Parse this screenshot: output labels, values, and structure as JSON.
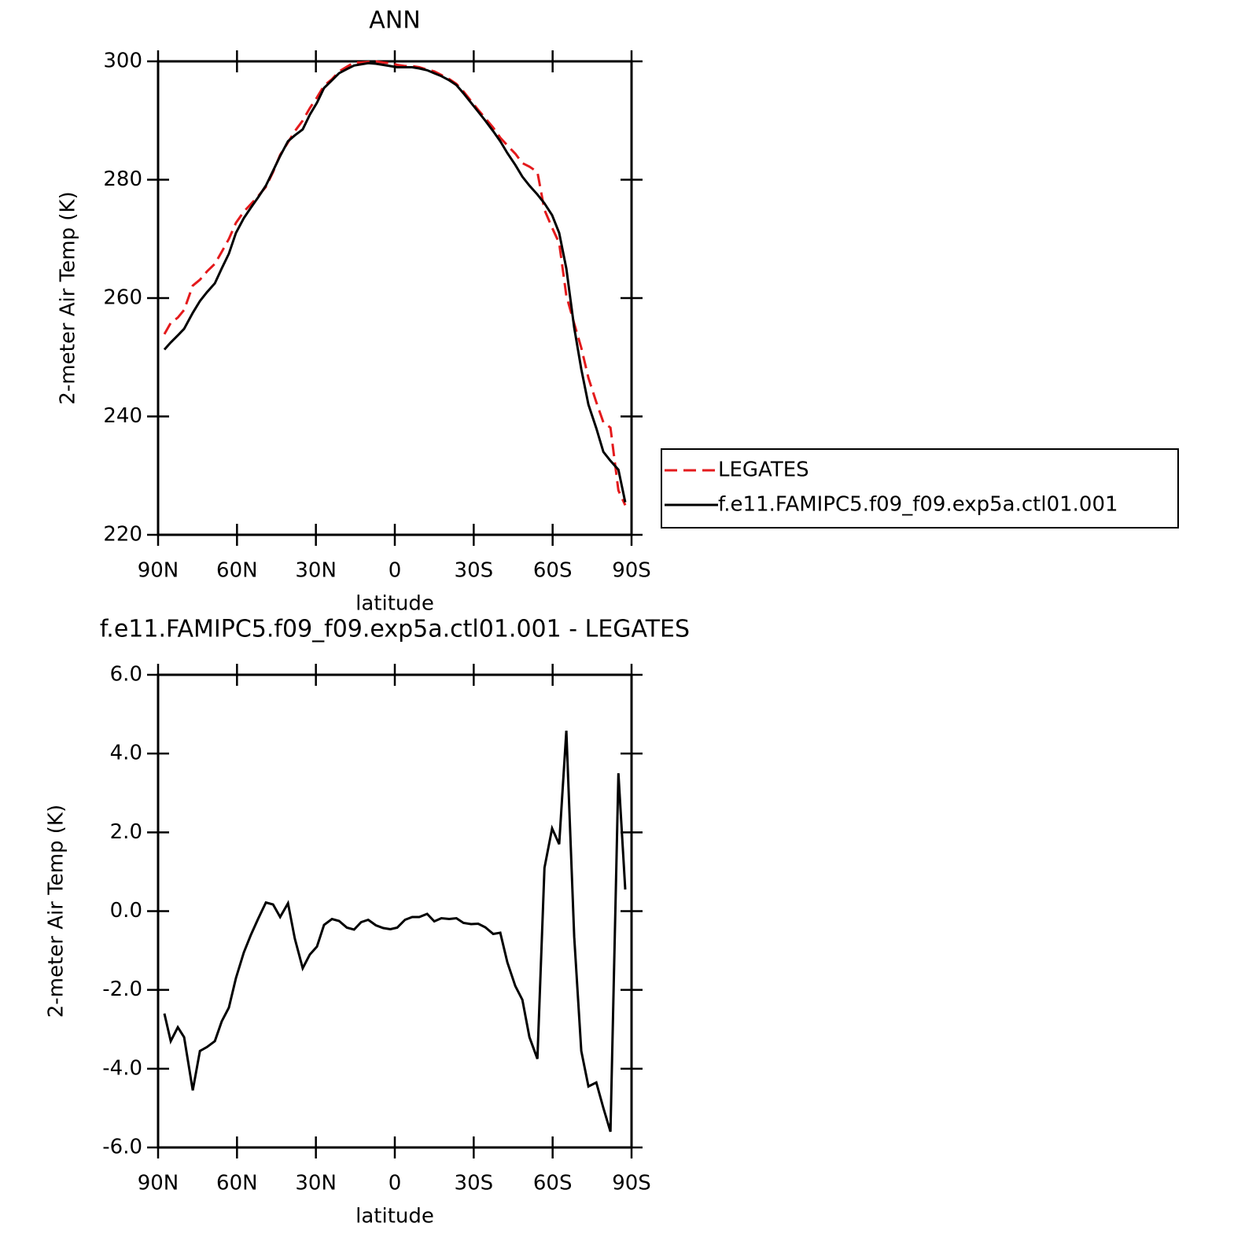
{
  "chart_data": [
    {
      "type": "line",
      "title": "ANN",
      "xlabel": "latitude",
      "ylabel": "2-meter Air Temp (K)",
      "xlim": [
        90,
        -90
      ],
      "xticks": [
        {
          "value": 90,
          "label": "90N"
        },
        {
          "value": 60,
          "label": "60N"
        },
        {
          "value": 30,
          "label": "30N"
        },
        0,
        {
          "value": -30,
          "label": "30S"
        },
        {
          "value": -60,
          "label": "60S"
        },
        {
          "value": -90,
          "label": "90S"
        }
      ],
      "ylim": [
        220,
        300
      ],
      "yticks": [
        220,
        240,
        260,
        280,
        300
      ],
      "legend_position": "right",
      "x": [
        87.6,
        85.2,
        82.5,
        80.1,
        76.8,
        74.1,
        71.4,
        68.4,
        65.8,
        63.1,
        60.4,
        57.4,
        54.7,
        52.0,
        49.0,
        46.3,
        43.6,
        40.6,
        38.0,
        35.0,
        32.3,
        29.6,
        26.9,
        23.9,
        21.2,
        18.2,
        15.5,
        12.8,
        10.1,
        7.2,
        4.4,
        1.7,
        -0.9,
        -3.9,
        -6.6,
        -9.3,
        -12.3,
        -15.0,
        -17.7,
        -20.7,
        -23.4,
        -26.1,
        -29.0,
        -31.7,
        -34.4,
        -37.4,
        -40.1,
        -42.8,
        -45.8,
        -48.5,
        -51.2,
        -54.2,
        -56.9,
        -59.8,
        -62.5,
        -65.2,
        -68.2,
        -70.9,
        -73.6,
        -76.6,
        -79.3,
        -82.0,
        -85.0,
        -87.6
      ],
      "series": [
        {
          "name": "LEGATES",
          "color": "#e41a1c",
          "line_style": "dashed",
          "values": [
            253.9,
            255.8,
            256.7,
            258.0,
            262.1,
            263.1,
            264.5,
            265.8,
            267.8,
            270.0,
            272.7,
            274.6,
            275.9,
            277.2,
            278.8,
            281.3,
            284.2,
            286.3,
            288.2,
            290.0,
            292.1,
            293.9,
            295.9,
            297.0,
            298.3,
            299.1,
            299.8,
            299.8,
            299.9,
            300.0,
            299.8,
            299.7,
            299.4,
            299.2,
            299.2,
            299.0,
            298.6,
            298.3,
            297.7,
            297.0,
            296.2,
            294.9,
            293.3,
            291.8,
            290.4,
            288.8,
            287.1,
            285.8,
            284.4,
            282.8,
            282.2,
            281.3,
            274.9,
            271.9,
            269.3,
            260.4,
            255.7,
            251.6,
            246.5,
            242.4,
            239.0,
            238.1,
            227.5,
            225.0
          ]
        },
        {
          "name": "f.e11.FAMIPC5.f09_f09.exp5a.ctl01.001",
          "color": "#000000",
          "line_style": "solid",
          "values": [
            251.3,
            252.5,
            253.7,
            254.8,
            257.5,
            259.5,
            261.0,
            262.5,
            265.0,
            267.5,
            271.0,
            273.5,
            275.3,
            277.0,
            279.0,
            281.5,
            284.0,
            286.5,
            287.5,
            288.5,
            291.0,
            293.0,
            295.5,
            296.8,
            298.0,
            298.7,
            299.3,
            299.5,
            299.7,
            299.6,
            299.4,
            299.2,
            299.0,
            299.0,
            299.0,
            298.8,
            298.5,
            298.0,
            297.5,
            296.8,
            296.0,
            294.6,
            293.0,
            291.5,
            290.0,
            288.2,
            286.5,
            284.5,
            282.5,
            280.5,
            279.0,
            277.5,
            276.0,
            274.0,
            271.0,
            265.0,
            255.0,
            248.0,
            242.0,
            238.0,
            234.0,
            232.5,
            231.0,
            225.5
          ]
        }
      ]
    },
    {
      "type": "line",
      "title": "f.e11.FAMIPC5.f09_f09.exp5a.ctl01.001 - LEGATES",
      "xlabel": "latitude",
      "ylabel": "2-meter Air Temp (K)",
      "xlim": [
        90,
        -90
      ],
      "xticks": [
        {
          "value": 90,
          "label": "90N"
        },
        {
          "value": 60,
          "label": "60N"
        },
        {
          "value": 30,
          "label": "30N"
        },
        0,
        {
          "value": -30,
          "label": "30S"
        },
        {
          "value": -60,
          "label": "60S"
        },
        {
          "value": -90,
          "label": "90S"
        }
      ],
      "ylim": [
        -6,
        6
      ],
      "yticks": [
        {
          "value": -6,
          "label": "-6.0"
        },
        {
          "value": -4,
          "label": "-4.0"
        },
        {
          "value": -2,
          "label": "-2.0"
        },
        {
          "value": 0,
          "label": "0.0"
        },
        {
          "value": 2,
          "label": "2.0"
        },
        {
          "value": 4,
          "label": "4.0"
        },
        {
          "value": 6,
          "label": "6.0"
        }
      ],
      "x": [
        87.6,
        85.2,
        82.5,
        80.1,
        76.8,
        74.1,
        71.4,
        68.4,
        65.8,
        63.1,
        60.4,
        57.4,
        54.7,
        52.0,
        49.0,
        46.3,
        43.6,
        40.6,
        38.0,
        35.0,
        32.3,
        29.6,
        26.9,
        23.9,
        21.2,
        18.2,
        15.5,
        12.8,
        10.1,
        7.2,
        4.4,
        1.7,
        -0.9,
        -3.9,
        -6.6,
        -9.3,
        -12.3,
        -15.0,
        -17.7,
        -20.7,
        -23.4,
        -26.1,
        -29.0,
        -31.7,
        -34.4,
        -37.4,
        -40.1,
        -42.8,
        -45.8,
        -48.5,
        -51.2,
        -54.2,
        -56.9,
        -59.8,
        -62.5,
        -65.2,
        -68.2,
        -70.9,
        -73.6,
        -76.6,
        -79.3,
        -82.0,
        -85.0,
        -87.6
      ],
      "color": "#000000",
      "values": [
        -2.6,
        -3.3,
        -2.95,
        -3.2,
        -4.55,
        -3.55,
        -3.45,
        -3.3,
        -2.8,
        -2.45,
        -1.7,
        -1.05,
        -0.6,
        -0.2,
        0.22,
        0.17,
        -0.15,
        0.2,
        -0.7,
        -1.45,
        -1.1,
        -0.9,
        -0.35,
        -0.2,
        -0.25,
        -0.42,
        -0.47,
        -0.28,
        -0.22,
        -0.36,
        -0.43,
        -0.46,
        -0.42,
        -0.22,
        -0.15,
        -0.15,
        -0.07,
        -0.26,
        -0.18,
        -0.2,
        -0.18,
        -0.3,
        -0.33,
        -0.32,
        -0.41,
        -0.58,
        -0.55,
        -1.3,
        -1.9,
        -2.25,
        -3.2,
        -3.75,
        1.1,
        2.1,
        1.7,
        4.58,
        -0.65,
        -3.55,
        -4.45,
        -4.35,
        -5.0,
        -5.6,
        3.5,
        0.55
      ]
    }
  ]
}
